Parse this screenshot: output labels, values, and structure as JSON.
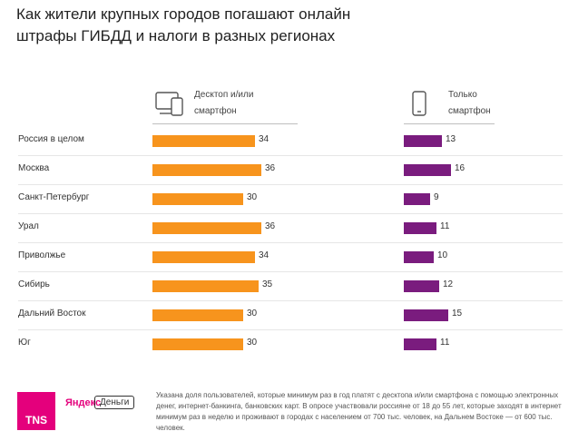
{
  "title": "Как жители крупных городов погашают онлайн штрафы ГИБДД и налоги в разных регионах",
  "columns": {
    "desktop": {
      "label": "Десктоп и/или\nсмартфон",
      "icon": "desktop-and-smartphone-icon"
    },
    "smartphone": {
      "label": "Только\nсмартфон",
      "icon": "smartphone-icon"
    }
  },
  "colors": {
    "desktop": "#f7941d",
    "smartphone": "#7a1c7e",
    "tns": "#e4007c"
  },
  "chart_data": {
    "type": "bar",
    "categories": [
      "Россия  в целом",
      "Москва",
      "Санкт-Петербург",
      "Урал",
      "Приволжье",
      "Сибирь",
      "Дальний  Восток",
      "Юг"
    ],
    "series": [
      {
        "name": "Десктоп и/или смартфон",
        "values": [
          34,
          36,
          30,
          36,
          34,
          35,
          30,
          30
        ]
      },
      {
        "name": "Только смартфон",
        "values": [
          13,
          16,
          9,
          11,
          10,
          12,
          15,
          11
        ]
      }
    ]
  },
  "footer": {
    "tns_logo": "TNS",
    "yandex_logo": "Яндекс",
    "money_label": "Деньги",
    "note": "Указана доля пользователей, которые минимум раз в год платят с десктопа и/или смартфона с помощью электронных денег, интернет-банкинга, банковских карт. В опросе участвовали россияне от 18 до 55 лет, которые заходят в интернет минимум раз в неделю и проживают в городах с населением от 700 тыс. человек, на Дальнем Востоке — от 600 тыс. человек."
  }
}
